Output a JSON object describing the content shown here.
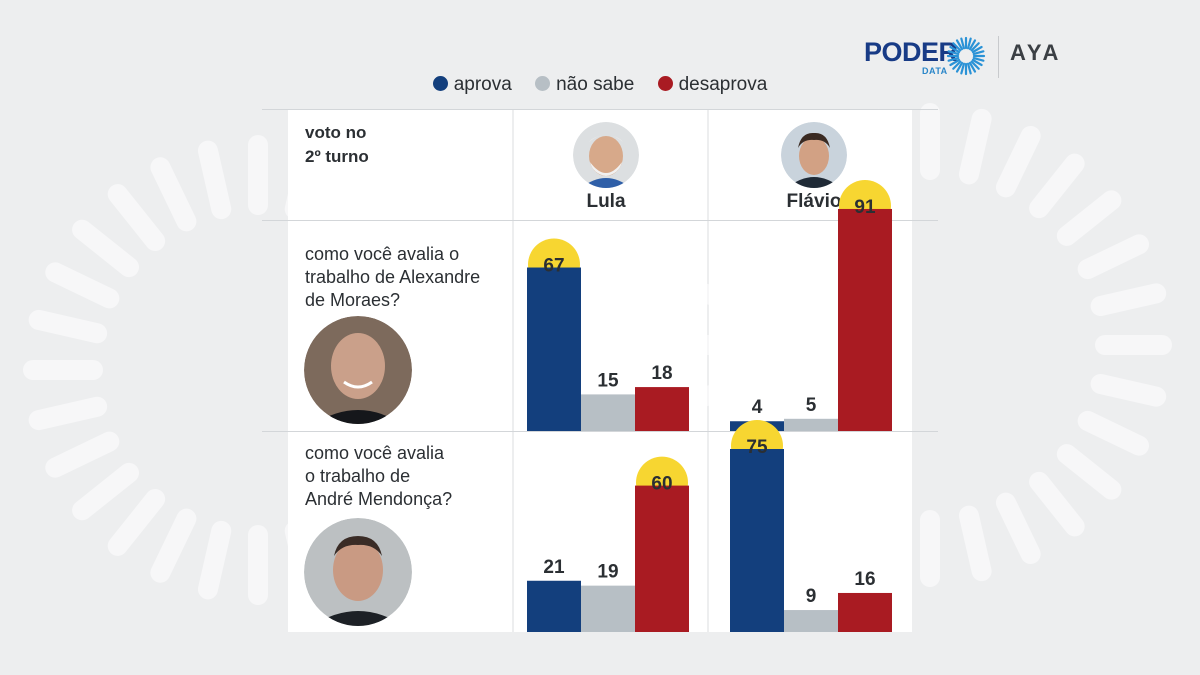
{
  "brand": {
    "poder": "PODER",
    "poder_sub": "DATA",
    "aya": "AYA"
  },
  "legend": [
    {
      "label": "aprova",
      "color": "#133f7d"
    },
    {
      "label": "não sabe",
      "color": "#b7bfc5"
    },
    {
      "label": "desaprova",
      "color": "#a91b22"
    }
  ],
  "table": {
    "header_label_line1": "voto no",
    "header_label_line2": "2º turno",
    "candidates": [
      {
        "name": "Lula",
        "photo": "lula-photo"
      },
      {
        "name": "Flávio",
        "photo": "flavio-photo"
      }
    ],
    "questions": [
      {
        "line1": "como você avalia o",
        "line2": "trabalho de Alexandre",
        "line3": "de Moraes?",
        "photo": "moraes-photo"
      },
      {
        "line1": "como você avalia",
        "line2": "o trabalho de",
        "line3": "André Mendonça?",
        "photo": "mendonca-photo"
      }
    ]
  },
  "chart_data": {
    "type": "bar",
    "categories": [
      "aprova",
      "não sabe",
      "desaprova"
    ],
    "colors": [
      "#133f7d",
      "#b7bfc5",
      "#a91b22"
    ],
    "highlight_color": "#f7d631",
    "groups": [
      {
        "question": "Alexandre de Moraes",
        "candidate": "Lula",
        "values": [
          67,
          15,
          18
        ]
      },
      {
        "question": "Alexandre de Moraes",
        "candidate": "Flávio",
        "values": [
          4,
          5,
          91
        ]
      },
      {
        "question": "André Mendonça",
        "candidate": "Lula",
        "values": [
          21,
          19,
          60
        ]
      },
      {
        "question": "André Mendonça",
        "candidate": "Flávio",
        "values": [
          75,
          9,
          16
        ]
      }
    ]
  }
}
